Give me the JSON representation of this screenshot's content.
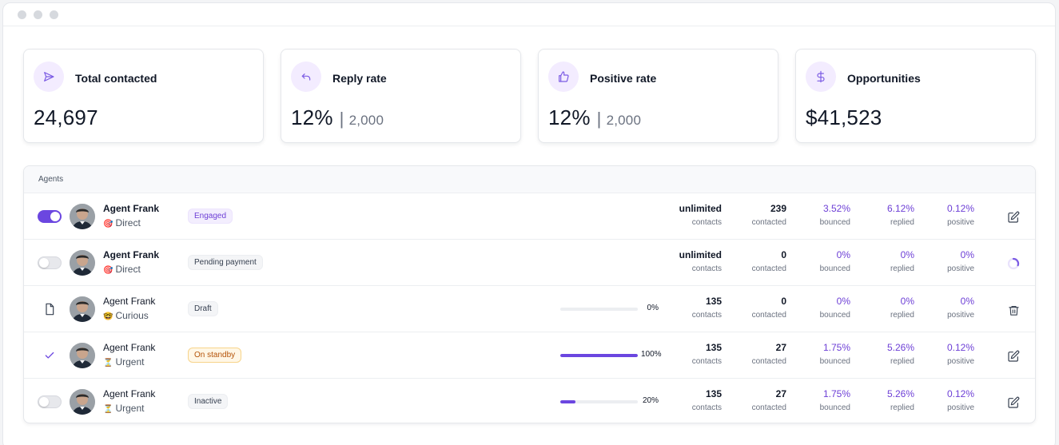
{
  "colors": {
    "accent": "#6b46e0",
    "icon_bg": "#f3ecff",
    "warning": "#b45309"
  },
  "cards": [
    {
      "title": "Total contacted",
      "value": "24,697",
      "sub": "",
      "icon": "send-icon"
    },
    {
      "title": "Reply rate",
      "value": "12%",
      "sub": "2,000",
      "icon": "reply-icon"
    },
    {
      "title": "Positive rate",
      "value": "12%",
      "sub": "2,000",
      "icon": "thumbs-up-icon"
    },
    {
      "title": "Opportunities",
      "value": "$41,523",
      "sub": "",
      "icon": "dollar-icon"
    }
  ],
  "table": {
    "header": "Agents",
    "rows": [
      {
        "lead": "toggle-on",
        "name": "Agent Frank",
        "mode_emoji": "🎯",
        "mode": "Direct",
        "status": "Engaged",
        "status_style": "purple",
        "progress": null,
        "progress_label": "",
        "contacts": "unlimited",
        "contacts_label": "contacts",
        "contacted": "239",
        "contacted_label": "contacted",
        "bounced": "3.52%",
        "bounced_label": "bounced",
        "replied": "6.12%",
        "replied_label": "replied",
        "positive": "0.12%",
        "positive_label": "positive",
        "action": "edit-icon"
      },
      {
        "lead": "toggle-off",
        "name": "Agent Frank",
        "mode_emoji": "🎯",
        "mode": "Direct",
        "status": "Pending payment",
        "status_style": "gray",
        "progress": null,
        "progress_label": "",
        "contacts": "unlimited",
        "contacts_label": "contacts",
        "contacted": "0",
        "contacted_label": "contacted",
        "bounced": "0%",
        "bounced_label": "bounced",
        "replied": "0%",
        "replied_label": "replied",
        "positive": "0%",
        "positive_label": "positive",
        "action": "loading-spinner-icon"
      },
      {
        "lead": "file-icon",
        "name": "Agent Frank",
        "mode_emoji": "🤓",
        "mode": "Curious",
        "status": "Draft",
        "status_style": "gray",
        "progress": 0,
        "progress_label": "0%",
        "contacts": "135",
        "contacts_label": "contacts",
        "contacted": "0",
        "contacted_label": "contacted",
        "bounced": "0%",
        "bounced_label": "bounced",
        "replied": "0%",
        "replied_label": "replied",
        "positive": "0%",
        "positive_label": "positive",
        "action": "trash-icon"
      },
      {
        "lead": "check-icon",
        "name": "Agent Frank",
        "mode_emoji": "⏳",
        "mode": "Urgent",
        "status": "On standby",
        "status_style": "amber",
        "progress": 100,
        "progress_label": "100%",
        "contacts": "135",
        "contacts_label": "contacts",
        "contacted": "27",
        "contacted_label": "contacted",
        "bounced": "1.75%",
        "bounced_label": "bounced",
        "replied": "5.26%",
        "replied_label": "replied",
        "positive": "0.12%",
        "positive_label": "positive",
        "action": "edit-icon"
      },
      {
        "lead": "toggle-off",
        "name": "Agent Frank",
        "mode_emoji": "⏳",
        "mode": "Urgent",
        "status": "Inactive",
        "status_style": "gray",
        "progress": 20,
        "progress_label": "20%",
        "contacts": "135",
        "contacts_label": "contacts",
        "contacted": "27",
        "contacted_label": "contacted",
        "bounced": "1.75%",
        "bounced_label": "bounced",
        "replied": "5.26%",
        "replied_label": "replied",
        "positive": "0.12%",
        "positive_label": "positive",
        "action": "edit-icon"
      }
    ]
  }
}
